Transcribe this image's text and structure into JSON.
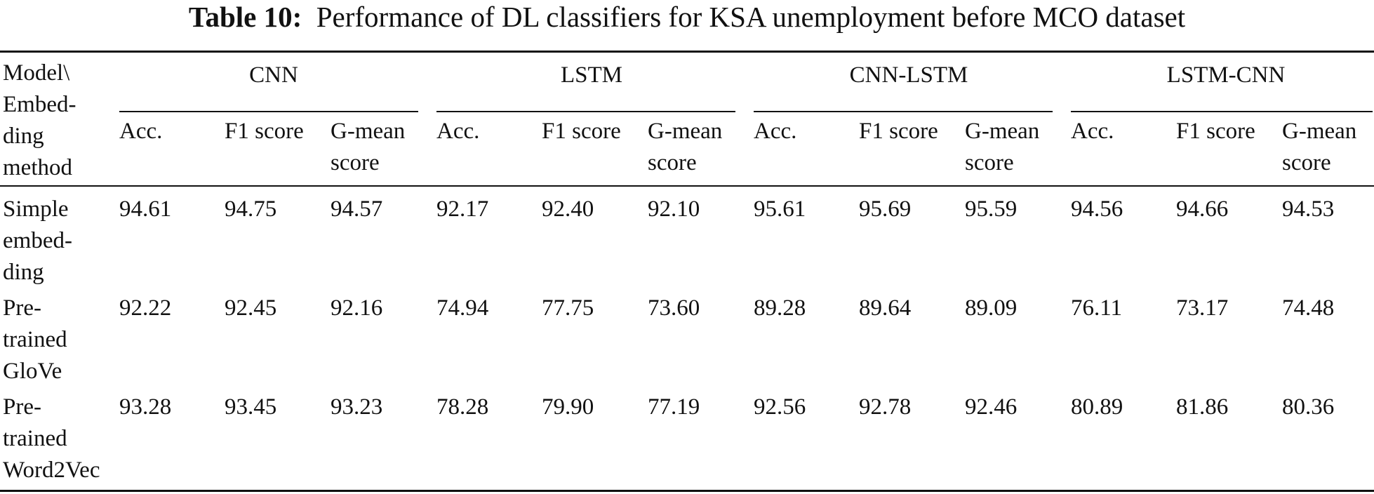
{
  "caption": {
    "label": "Table 10:",
    "text": "Performance of DL classifiers for KSA unemployment before MCO dataset"
  },
  "table": {
    "stub_header": [
      "Model\\",
      "Embed-",
      "ding",
      "method"
    ],
    "groups": [
      "CNN",
      "LSTM",
      "CNN-LSTM",
      "LSTM-CNN"
    ],
    "metrics": [
      {
        "lines": [
          "Acc."
        ]
      },
      {
        "lines": [
          "F1 score"
        ]
      },
      {
        "lines": [
          "G-mean",
          "score"
        ]
      }
    ],
    "rows": [
      {
        "label_lines": [
          "Simple",
          "embed-",
          "ding"
        ],
        "values": [
          "94.61",
          "94.75",
          "94.57",
          "92.17",
          "92.40",
          "92.10",
          "95.61",
          "95.69",
          "95.59",
          "94.56",
          "94.66",
          "94.53"
        ]
      },
      {
        "label_lines": [
          "Pre-",
          "trained",
          "GloVe"
        ],
        "values": [
          "92.22",
          "92.45",
          "92.16",
          "74.94",
          "77.75",
          "73.60",
          "89.28",
          "89.64",
          "89.09",
          "76.11",
          "73.17",
          "74.48"
        ]
      },
      {
        "label_lines": [
          "Pre-",
          "trained",
          "Word2Vec"
        ],
        "values": [
          "93.28",
          "93.45",
          "93.23",
          "78.28",
          "79.90",
          "77.19",
          "92.56",
          "92.78",
          "92.46",
          "80.89",
          "81.86",
          "80.36"
        ]
      }
    ]
  }
}
